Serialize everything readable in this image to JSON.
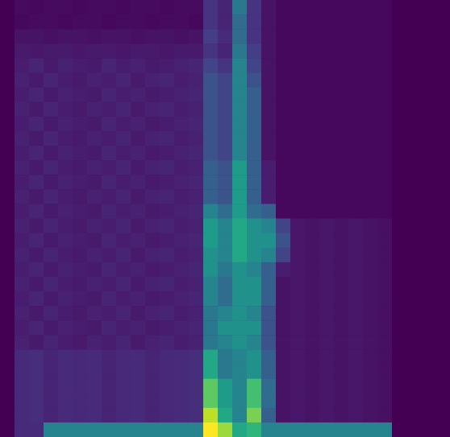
{
  "chart_data": {
    "type": "heatmap",
    "xlim": [
      0,
      31
    ],
    "ylim": [
      0,
      30
    ],
    "tick_labels": false,
    "color_range": [
      0,
      1
    ],
    "cells": [
      [
        0,
        0.03,
        0.02,
        0.03,
        0.03,
        0.02,
        0.03,
        0.03,
        0.02,
        0.03,
        0.03,
        0.02,
        0.03,
        0.03,
        0.15,
        0.1,
        0.4,
        0.15,
        0.05,
        0.02,
        0.02,
        0.02,
        0.02,
        0.02,
        0.02,
        0.02,
        0.02,
        0,
        0,
        0,
        0
      ],
      [
        0,
        0.02,
        0.03,
        0.03,
        0.02,
        0.03,
        0.03,
        0.02,
        0.03,
        0.03,
        0.02,
        0.03,
        0.03,
        0.02,
        0.15,
        0.1,
        0.35,
        0.15,
        0.05,
        0.02,
        0.02,
        0.02,
        0.02,
        0.02,
        0.02,
        0.02,
        0.02,
        0,
        0,
        0,
        0
      ],
      [
        0,
        0.05,
        0.05,
        0.04,
        0.05,
        0.05,
        0.04,
        0.05,
        0.05,
        0.04,
        0.05,
        0.05,
        0.04,
        0.05,
        0.18,
        0.12,
        0.35,
        0.15,
        0.05,
        0.02,
        0.02,
        0.02,
        0.02,
        0.02,
        0.02,
        0.02,
        0.02,
        0,
        0,
        0,
        0
      ],
      [
        0,
        0.07,
        0.06,
        0.07,
        0.07,
        0.06,
        0.07,
        0.07,
        0.06,
        0.07,
        0.07,
        0.06,
        0.07,
        0.07,
        0.15,
        0.1,
        0.4,
        0.18,
        0.05,
        0.02,
        0.02,
        0.02,
        0.02,
        0.02,
        0.02,
        0.02,
        0.02,
        0,
        0,
        0,
        0
      ],
      [
        0,
        0.08,
        0.1,
        0.07,
        0.09,
        0.08,
        0.07,
        0.1,
        0.08,
        0.09,
        0.07,
        0.08,
        0.09,
        0.1,
        0.2,
        0.15,
        0.45,
        0.2,
        0.05,
        0.02,
        0.02,
        0.02,
        0.02,
        0.02,
        0.02,
        0.02,
        0.02,
        0,
        0,
        0,
        0
      ],
      [
        0,
        0.09,
        0.07,
        0.1,
        0.08,
        0.07,
        0.09,
        0.08,
        0.1,
        0.07,
        0.09,
        0.1,
        0.08,
        0.09,
        0.25,
        0.2,
        0.45,
        0.25,
        0.05,
        0.02,
        0.02,
        0.02,
        0.02,
        0.02,
        0.02,
        0.02,
        0.02,
        0,
        0,
        0,
        0
      ],
      [
        0,
        0.08,
        0.1,
        0.07,
        0.09,
        0.08,
        0.07,
        0.1,
        0.08,
        0.09,
        0.07,
        0.08,
        0.09,
        0.1,
        0.25,
        0.2,
        0.45,
        0.3,
        0.05,
        0.02,
        0.02,
        0.02,
        0.02,
        0.02,
        0.02,
        0.02,
        0.02,
        0,
        0,
        0,
        0
      ],
      [
        0,
        0.09,
        0.07,
        0.1,
        0.08,
        0.07,
        0.09,
        0.08,
        0.1,
        0.07,
        0.09,
        0.1,
        0.08,
        0.09,
        0.25,
        0.2,
        0.45,
        0.3,
        0.05,
        0.02,
        0.02,
        0.02,
        0.02,
        0.02,
        0.02,
        0.02,
        0.02,
        0,
        0,
        0,
        0
      ],
      [
        0,
        0.08,
        0.1,
        0.07,
        0.09,
        0.08,
        0.07,
        0.1,
        0.08,
        0.09,
        0.07,
        0.08,
        0.09,
        0.1,
        0.25,
        0.2,
        0.45,
        0.3,
        0.05,
        0.02,
        0.02,
        0.02,
        0.02,
        0.02,
        0.02,
        0.02,
        0.02,
        0,
        0,
        0,
        0
      ],
      [
        0,
        0.09,
        0.07,
        0.1,
        0.08,
        0.07,
        0.09,
        0.08,
        0.1,
        0.07,
        0.09,
        0.1,
        0.08,
        0.09,
        0.25,
        0.2,
        0.45,
        0.3,
        0.05,
        0.02,
        0.02,
        0.02,
        0.02,
        0.02,
        0.02,
        0.02,
        0.02,
        0,
        0,
        0,
        0
      ],
      [
        0,
        0.08,
        0.1,
        0.07,
        0.09,
        0.08,
        0.07,
        0.1,
        0.08,
        0.09,
        0.07,
        0.08,
        0.09,
        0.1,
        0.25,
        0.2,
        0.45,
        0.3,
        0.05,
        0.02,
        0.02,
        0.02,
        0.02,
        0.02,
        0.02,
        0.02,
        0.02,
        0,
        0,
        0,
        0
      ],
      [
        0,
        0.09,
        0.07,
        0.1,
        0.08,
        0.07,
        0.09,
        0.08,
        0.1,
        0.07,
        0.09,
        0.1,
        0.08,
        0.09,
        0.3,
        0.25,
        0.55,
        0.3,
        0.08,
        0.02,
        0.02,
        0.02,
        0.02,
        0.02,
        0.02,
        0.02,
        0.02,
        0,
        0,
        0,
        0
      ],
      [
        0,
        0.08,
        0.1,
        0.07,
        0.09,
        0.08,
        0.07,
        0.1,
        0.08,
        0.09,
        0.07,
        0.08,
        0.09,
        0.1,
        0.3,
        0.25,
        0.55,
        0.3,
        0.08,
        0.02,
        0.02,
        0.02,
        0.02,
        0.02,
        0.02,
        0.02,
        0.02,
        0,
        0,
        0,
        0
      ],
      [
        0,
        0.09,
        0.07,
        0.1,
        0.08,
        0.07,
        0.09,
        0.08,
        0.1,
        0.07,
        0.09,
        0.1,
        0.08,
        0.09,
        0.3,
        0.25,
        0.55,
        0.3,
        0.08,
        0.02,
        0.02,
        0.02,
        0.02,
        0.02,
        0.02,
        0.02,
        0.02,
        0,
        0,
        0,
        0
      ],
      [
        0,
        0.08,
        0.1,
        0.07,
        0.09,
        0.08,
        0.07,
        0.1,
        0.08,
        0.09,
        0.07,
        0.08,
        0.09,
        0.1,
        0.45,
        0.35,
        0.55,
        0.35,
        0.3,
        0.02,
        0.02,
        0.02,
        0.02,
        0.02,
        0.02,
        0.02,
        0.02,
        0,
        0,
        0,
        0
      ],
      [
        0,
        0.09,
        0.07,
        0.1,
        0.08,
        0.07,
        0.09,
        0.08,
        0.1,
        0.07,
        0.09,
        0.1,
        0.08,
        0.09,
        0.55,
        0.45,
        0.6,
        0.5,
        0.45,
        0.2,
        0.06,
        0.05,
        0.06,
        0.05,
        0.06,
        0.05,
        0.04,
        0,
        0,
        0,
        0
      ],
      [
        0,
        0.08,
        0.1,
        0.07,
        0.09,
        0.08,
        0.07,
        0.1,
        0.08,
        0.09,
        0.07,
        0.08,
        0.09,
        0.1,
        0.55,
        0.45,
        0.6,
        0.5,
        0.5,
        0.25,
        0.06,
        0.05,
        0.06,
        0.05,
        0.06,
        0.05,
        0.04,
        0,
        0,
        0,
        0
      ],
      [
        0,
        0.09,
        0.07,
        0.1,
        0.08,
        0.07,
        0.09,
        0.08,
        0.1,
        0.07,
        0.09,
        0.1,
        0.08,
        0.09,
        0.5,
        0.45,
        0.6,
        0.5,
        0.45,
        0.2,
        0.06,
        0.05,
        0.06,
        0.05,
        0.06,
        0.05,
        0.04,
        0,
        0,
        0,
        0
      ],
      [
        0,
        0.08,
        0.1,
        0.07,
        0.09,
        0.08,
        0.07,
        0.1,
        0.08,
        0.09,
        0.07,
        0.08,
        0.09,
        0.1,
        0.5,
        0.4,
        0.5,
        0.45,
        0.3,
        0.08,
        0.06,
        0.05,
        0.06,
        0.05,
        0.06,
        0.05,
        0.04,
        0,
        0,
        0,
        0
      ],
      [
        0,
        0.09,
        0.07,
        0.1,
        0.08,
        0.07,
        0.09,
        0.08,
        0.1,
        0.07,
        0.09,
        0.1,
        0.08,
        0.09,
        0.45,
        0.35,
        0.5,
        0.5,
        0.3,
        0.05,
        0.06,
        0.05,
        0.06,
        0.05,
        0.06,
        0.05,
        0.04,
        0,
        0,
        0,
        0
      ],
      [
        0,
        0.08,
        0.1,
        0.07,
        0.09,
        0.08,
        0.07,
        0.1,
        0.08,
        0.09,
        0.07,
        0.08,
        0.09,
        0.1,
        0.45,
        0.35,
        0.5,
        0.5,
        0.3,
        0.05,
        0.06,
        0.05,
        0.06,
        0.05,
        0.06,
        0.05,
        0.04,
        0,
        0,
        0,
        0
      ],
      [
        0,
        0.09,
        0.07,
        0.1,
        0.08,
        0.07,
        0.09,
        0.08,
        0.1,
        0.07,
        0.09,
        0.1,
        0.08,
        0.09,
        0.4,
        0.45,
        0.5,
        0.45,
        0.25,
        0.05,
        0.06,
        0.05,
        0.06,
        0.05,
        0.06,
        0.05,
        0.04,
        0,
        0,
        0,
        0
      ],
      [
        0,
        0.08,
        0.1,
        0.07,
        0.09,
        0.08,
        0.07,
        0.1,
        0.08,
        0.09,
        0.07,
        0.08,
        0.09,
        0.1,
        0.4,
        0.5,
        0.5,
        0.5,
        0.25,
        0.05,
        0.06,
        0.05,
        0.06,
        0.05,
        0.06,
        0.05,
        0.04,
        0,
        0,
        0,
        0
      ],
      [
        0,
        0.09,
        0.07,
        0.1,
        0.08,
        0.07,
        0.09,
        0.08,
        0.1,
        0.07,
        0.09,
        0.1,
        0.08,
        0.09,
        0.4,
        0.45,
        0.5,
        0.45,
        0.25,
        0.05,
        0.06,
        0.05,
        0.06,
        0.05,
        0.06,
        0.05,
        0.04,
        0,
        0,
        0,
        0
      ],
      [
        0,
        0.12,
        0.13,
        0.1,
        0.12,
        0.11,
        0.12,
        0.1,
        0.11,
        0.12,
        0.1,
        0.11,
        0.12,
        0.13,
        0.6,
        0.4,
        0.45,
        0.5,
        0.3,
        0.05,
        0.06,
        0.05,
        0.06,
        0.05,
        0.06,
        0.05,
        0.04,
        0,
        0,
        0,
        0
      ],
      [
        0,
        0.12,
        0.13,
        0.1,
        0.12,
        0.11,
        0.12,
        0.1,
        0.11,
        0.12,
        0.1,
        0.11,
        0.12,
        0.13,
        0.6,
        0.4,
        0.45,
        0.5,
        0.3,
        0.05,
        0.06,
        0.05,
        0.06,
        0.05,
        0.06,
        0.05,
        0.04,
        0,
        0,
        0,
        0
      ],
      [
        0,
        0.12,
        0.13,
        0.1,
        0.12,
        0.11,
        0.12,
        0.1,
        0.11,
        0.12,
        0.1,
        0.11,
        0.12,
        0.13,
        0.75,
        0.55,
        0.45,
        0.7,
        0.35,
        0.05,
        0.06,
        0.05,
        0.06,
        0.05,
        0.06,
        0.05,
        0.04,
        0,
        0,
        0,
        0
      ],
      [
        0,
        0.12,
        0.13,
        0.1,
        0.12,
        0.11,
        0.12,
        0.1,
        0.11,
        0.12,
        0.1,
        0.11,
        0.12,
        0.13,
        0.75,
        0.55,
        0.45,
        0.7,
        0.35,
        0.05,
        0.06,
        0.05,
        0.06,
        0.05,
        0.06,
        0.05,
        0.04,
        0,
        0,
        0,
        0
      ],
      [
        0,
        0.12,
        0.13,
        0.1,
        0.12,
        0.11,
        0.12,
        0.1,
        0.11,
        0.12,
        0.1,
        0.11,
        0.12,
        0.13,
        0.9,
        0.6,
        0.45,
        0.8,
        0.3,
        0.05,
        0.06,
        0.05,
        0.06,
        0.05,
        0.06,
        0.05,
        0.04,
        0,
        0,
        0,
        0
      ],
      [
        0,
        0.12,
        0.12,
        0.45,
        0.45,
        0.45,
        0.45,
        0.45,
        0.45,
        0.45,
        0.45,
        0.45,
        0.45,
        0.45,
        1.0,
        0.85,
        0.6,
        0.65,
        0.45,
        0.45,
        0.45,
        0.45,
        0.45,
        0.45,
        0.45,
        0.45,
        0.45,
        0,
        0,
        0,
        0
      ]
    ]
  }
}
